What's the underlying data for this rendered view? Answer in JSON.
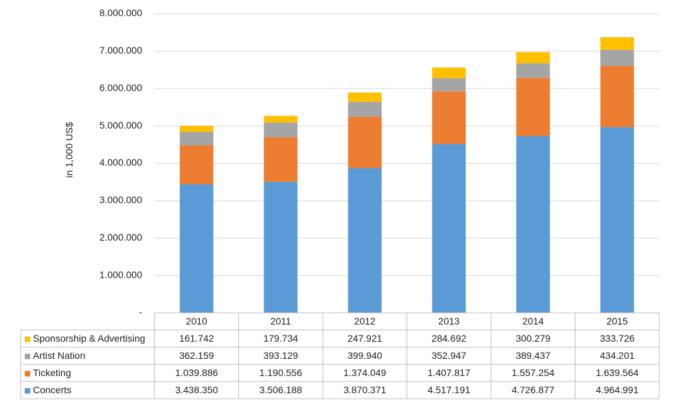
{
  "chart_data": {
    "type": "stacked-bar",
    "y_label": "in 1,000 US$",
    "categories": [
      "2010",
      "2011",
      "2012",
      "2013",
      "2014",
      "2015"
    ],
    "series": [
      {
        "name": "Concerts",
        "color": "#5b9bd5",
        "values": [
          3438350,
          3506188,
          3870371,
          4517191,
          4726877,
          4964991
        ],
        "value_labels": [
          "3.438.350",
          "3.506.188",
          "3.870.371",
          "4.517.191",
          "4.726.877",
          "4.964.991"
        ]
      },
      {
        "name": "Ticketing",
        "color": "#ed7d31",
        "values": [
          1039886,
          1190556,
          1374049,
          1407817,
          1557254,
          1639564
        ],
        "value_labels": [
          "1.039.886",
          "1.190.556",
          "1.374.049",
          "1.407.817",
          "1.557.254",
          "1.639.564"
        ]
      },
      {
        "name": "Artist Nation",
        "color": "#a5a5a5",
        "values": [
          362159,
          393129,
          399940,
          352947,
          389437,
          434201
        ],
        "value_labels": [
          "362.159",
          "393.129",
          "399.940",
          "352.947",
          "389.437",
          "434.201"
        ]
      },
      {
        "name": "Sponsorship & Advertising",
        "color": "#ffc000",
        "values": [
          161742,
          179734,
          247921,
          284692,
          300279,
          333726
        ],
        "value_labels": [
          "161.742",
          "179.734",
          "247.921",
          "284.692",
          "300.279",
          "333.726"
        ]
      }
    ],
    "ylim": [
      0,
      8000000
    ],
    "yticks": [
      {
        "value": 0,
        "label": "-"
      },
      {
        "value": 1000000,
        "label": "1.000.000"
      },
      {
        "value": 2000000,
        "label": "2.000.000"
      },
      {
        "value": 3000000,
        "label": "3.000.000"
      },
      {
        "value": 4000000,
        "label": "4.000.000"
      },
      {
        "value": 5000000,
        "label": "5.000.000"
      },
      {
        "value": 6000000,
        "label": "6.000.000"
      },
      {
        "value": 7000000,
        "label": "7.000.000"
      },
      {
        "value": 8000000,
        "label": "8.000.000"
      }
    ],
    "grid": true
  }
}
